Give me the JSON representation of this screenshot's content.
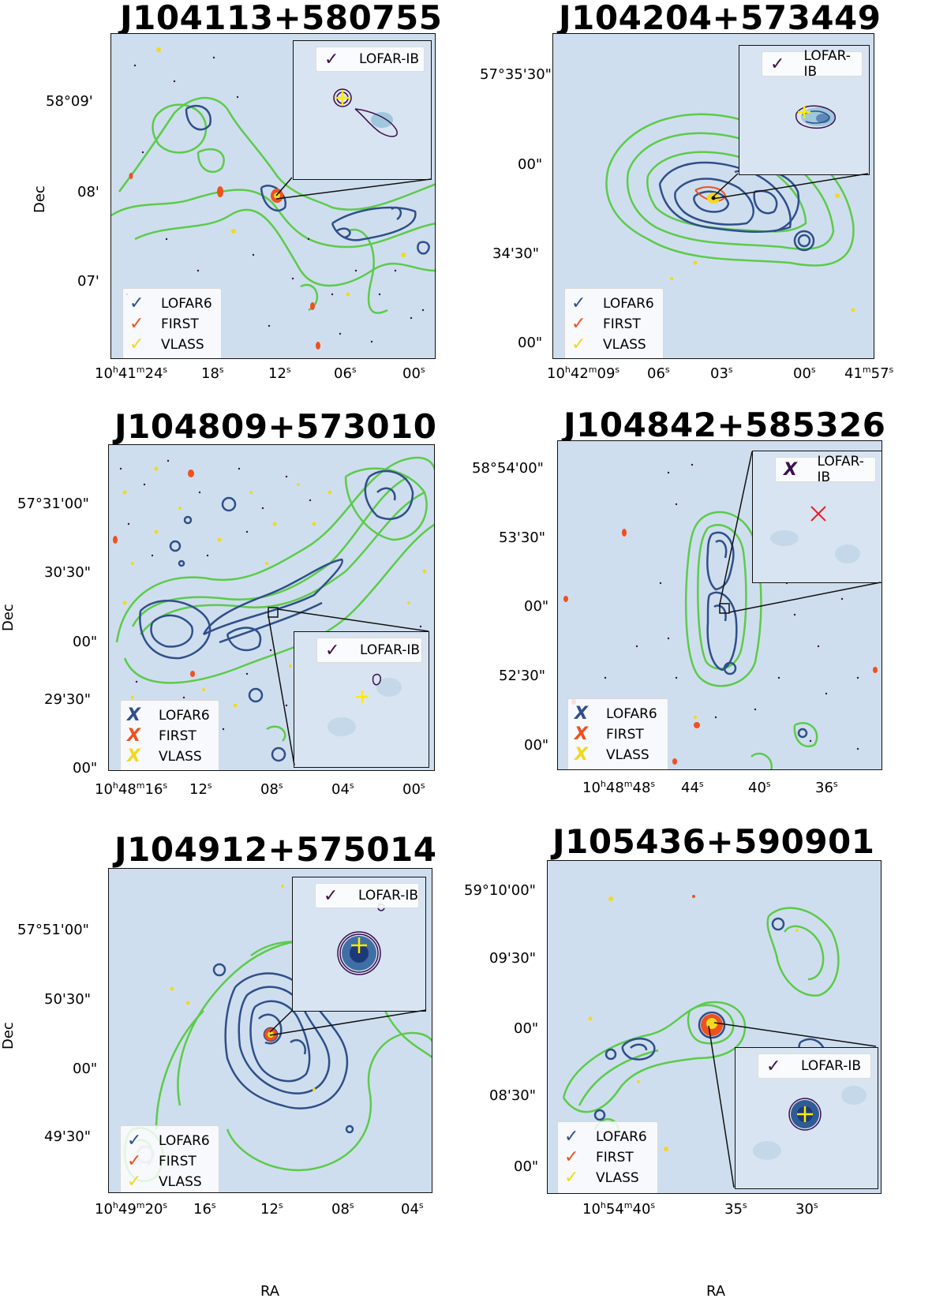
{
  "colors": {
    "background": "#cfdeee",
    "lofar6": "#2f4f8a",
    "first": "#f0501e",
    "vlass": "#f2d91e",
    "lofar_ib": "#3b0f4f",
    "optical_cross": "#ffeb00",
    "lotss": "#5ccb4a"
  },
  "axes": {
    "ra_label": "RA",
    "dec_label": "Dec"
  },
  "panels": [
    {
      "title": "J104113+580755",
      "dec_ticks": [
        "58°09'",
        "08'",
        "07'"
      ],
      "ra_ticks": [
        "10h41m24s",
        "18s",
        "12s",
        "06s",
        "00s"
      ],
      "legend": [
        {
          "mark": "✓",
          "label": "LOFAR6"
        },
        {
          "mark": "✓",
          "label": "FIRST"
        },
        {
          "mark": "✓",
          "label": "VLASS"
        }
      ],
      "inset": {
        "mark": "✓",
        "label": "LOFAR-IB"
      }
    },
    {
      "title": "J104204+573449",
      "dec_ticks": [
        "57°35'30\"",
        "00\"",
        "34'30\"",
        "00\""
      ],
      "ra_ticks": [
        "10h42m09s",
        "06s",
        "03s",
        "00s",
        "41m57s"
      ],
      "legend": [
        {
          "mark": "✓",
          "label": "LOFAR6"
        },
        {
          "mark": "✓",
          "label": "FIRST"
        },
        {
          "mark": "✓",
          "label": "VLASS"
        }
      ],
      "inset": {
        "mark": "✓",
        "label": "LOFAR-IB"
      }
    },
    {
      "title": "J104809+573010",
      "dec_ticks": [
        "57°31'00\"",
        "30'30\"",
        "00\"",
        "29'30\"",
        "00\""
      ],
      "ra_ticks": [
        "10h48m16s",
        "12s",
        "08s",
        "04s",
        "00s"
      ],
      "legend": [
        {
          "mark": "X",
          "label": "LOFAR6"
        },
        {
          "mark": "X",
          "label": "FIRST"
        },
        {
          "mark": "X",
          "label": "VLASS"
        }
      ],
      "inset": {
        "mark": "✓",
        "label": "LOFAR-IB"
      }
    },
    {
      "title": "J104842+585326",
      "dec_ticks": [
        "58°54'00\"",
        "53'30\"",
        "00\"",
        "52'30\"",
        "00\""
      ],
      "ra_ticks": [
        "10h48m48s",
        "44s",
        "40s",
        "36s"
      ],
      "legend": [
        {
          "mark": "X",
          "label": "LOFAR6"
        },
        {
          "mark": "X",
          "label": "FIRST"
        },
        {
          "mark": "X",
          "label": "VLASS"
        }
      ],
      "inset": {
        "mark": "X",
        "label": "LOFAR-IB"
      }
    },
    {
      "title": "J104912+575014",
      "dec_ticks": [
        "57°51'00\"",
        "50'30\"",
        "00\"",
        "49'30\""
      ],
      "ra_ticks": [
        "10h49m20s",
        "16s",
        "12s",
        "08s",
        "04s"
      ],
      "legend": [
        {
          "mark": "✓",
          "label": "LOFAR6"
        },
        {
          "mark": "✓",
          "label": "FIRST"
        },
        {
          "mark": "✓",
          "label": "VLASS"
        }
      ],
      "inset": {
        "mark": "✓",
        "label": "LOFAR-IB"
      }
    },
    {
      "title": "J105436+590901",
      "dec_ticks": [
        "59°10'00\"",
        "09'30\"",
        "00\"",
        "08'30\"",
        "00\""
      ],
      "ra_ticks": [
        "10h54m40s",
        "35s",
        "30s"
      ],
      "legend": [
        {
          "mark": "✓",
          "label": "LOFAR6"
        },
        {
          "mark": "✓",
          "label": "FIRST"
        },
        {
          "mark": "✓",
          "label": "VLASS"
        }
      ],
      "inset": {
        "mark": "✓",
        "label": "LOFAR-IB"
      }
    }
  ]
}
